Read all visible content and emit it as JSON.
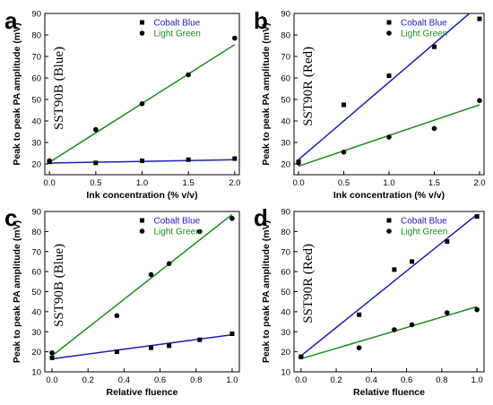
{
  "colors": {
    "blue": "#1c1cb4",
    "green": "#1a8c1a",
    "marker": "#000000",
    "axis": "#000000"
  },
  "chart_data": [
    {
      "panel": "a",
      "type": "scatter",
      "sample_label": "SST90B (Blue)",
      "xlabel": "Ink concentration (% v/v)",
      "ylabel": "Peak to peak PA amplitude (mV)",
      "xlim": [
        -0.05,
        2.05
      ],
      "ylim": [
        15,
        90
      ],
      "xticks": [
        "0.0",
        "0.5",
        "1.0",
        "1.5",
        "2.0"
      ],
      "xtick_values": [
        0,
        0.5,
        1.0,
        1.5,
        2.0
      ],
      "yticks": [
        "20",
        "30",
        "40",
        "50",
        "60",
        "70",
        "80",
        "90"
      ],
      "ytick_values": [
        20,
        30,
        40,
        50,
        60,
        70,
        80,
        90
      ],
      "legend": "top-left",
      "series": [
        {
          "name": "Cobalt Blue",
          "marker": "square",
          "color": "blue",
          "x": [
            0,
            0.5,
            1.0,
            1.5,
            2.0
          ],
          "y": [
            21.0,
            20.5,
            21.5,
            22.0,
            22.5
          ],
          "fit": [
            [
              0,
              20.4
            ],
            [
              2.0,
              22.0
            ]
          ]
        },
        {
          "name": "Light Green",
          "marker": "circle",
          "color": "green",
          "x": [
            0,
            0.5,
            1.0,
            1.5,
            2.0
          ],
          "y": [
            21.5,
            36.0,
            48.0,
            61.5,
            78.5
          ],
          "fit": [
            [
              0,
              20.8
            ],
            [
              2.0,
              75.5
            ]
          ]
        }
      ]
    },
    {
      "panel": "b",
      "type": "scatter",
      "sample_label": "SST90R (Red)",
      "xlabel": "Ink concentration (% v/v)",
      "ylabel": "Peak to peak PA amplitude (mV)",
      "xlim": [
        -0.05,
        2.05
      ],
      "ylim": [
        15,
        90
      ],
      "xticks": [
        "0.0",
        "0.5",
        "1.0",
        "1.5",
        "2.0"
      ],
      "xtick_values": [
        0,
        0.5,
        1.0,
        1.5,
        2.0
      ],
      "yticks": [
        "20",
        "30",
        "40",
        "50",
        "60",
        "70",
        "80",
        "90"
      ],
      "ytick_values": [
        20,
        30,
        40,
        50,
        60,
        70,
        80,
        90
      ],
      "legend": "top-left",
      "series": [
        {
          "name": "Cobalt Blue",
          "marker": "square",
          "color": "blue",
          "x": [
            0,
            0.5,
            1.0,
            1.5,
            2.0
          ],
          "y": [
            21.0,
            47.5,
            61.0,
            74.5,
            87.5
          ],
          "fit": [
            [
              0,
              22.0
            ],
            [
              2.0,
              94.0
            ]
          ]
        },
        {
          "name": "Light Green",
          "marker": "circle",
          "color": "green",
          "x": [
            0,
            0.5,
            1.0,
            1.5,
            2.0
          ],
          "y": [
            20.5,
            25.5,
            32.5,
            36.5,
            49.5
          ],
          "fit": [
            [
              0,
              19.0
            ],
            [
              2.0,
              47.5
            ]
          ]
        }
      ]
    },
    {
      "panel": "c",
      "type": "scatter",
      "sample_label": "SST90B (Blue)",
      "xlabel": "Relative fluence",
      "ylabel": "Peak to peak PA amplitude (mV)",
      "xlim": [
        -0.04,
        1.04
      ],
      "ylim": [
        10,
        90
      ],
      "xticks": [
        "0.0",
        "0.2",
        "0.4",
        "0.6",
        "0.8",
        "1.0"
      ],
      "xtick_values": [
        0,
        0.2,
        0.4,
        0.6,
        0.8,
        1.0
      ],
      "yticks": [
        "10",
        "20",
        "30",
        "40",
        "50",
        "60",
        "70",
        "80",
        "90"
      ],
      "ytick_values": [
        10,
        20,
        30,
        40,
        50,
        60,
        70,
        80,
        90
      ],
      "legend": "top-left",
      "series": [
        {
          "name": "Cobalt Blue",
          "marker": "square",
          "color": "blue",
          "x": [
            0,
            0.36,
            0.55,
            0.65,
            0.82,
            1.0
          ],
          "y": [
            17.0,
            20.0,
            22.0,
            23.0,
            26.0,
            29.0
          ],
          "fit": [
            [
              0,
              16.5
            ],
            [
              1.0,
              28.5
            ]
          ]
        },
        {
          "name": "Light Green",
          "marker": "circle",
          "color": "green",
          "x": [
            0,
            0.36,
            0.55,
            0.65,
            0.82,
            1.0
          ],
          "y": [
            19.5,
            38.0,
            58.5,
            64.0,
            80.0,
            86.5
          ],
          "fit": [
            [
              0,
              18.0
            ],
            [
              1.0,
              88.5
            ]
          ]
        }
      ]
    },
    {
      "panel": "d",
      "type": "scatter",
      "sample_label": "SST90R (Red)",
      "xlabel": "Relative fluence",
      "ylabel": "Peak to peak PA amplitude (mV)",
      "xlim": [
        -0.04,
        1.04
      ],
      "ylim": [
        10,
        90
      ],
      "xticks": [
        "0.0",
        "0.2",
        "0.4",
        "0.6",
        "0.8",
        "1.0"
      ],
      "xtick_values": [
        0,
        0.2,
        0.4,
        0.6,
        0.8,
        1.0
      ],
      "yticks": [
        "10",
        "20",
        "30",
        "40",
        "50",
        "60",
        "70",
        "80",
        "90"
      ],
      "ytick_values": [
        10,
        20,
        30,
        40,
        50,
        60,
        70,
        80,
        90
      ],
      "legend": "top-left",
      "series": [
        {
          "name": "Cobalt Blue",
          "marker": "square",
          "color": "blue",
          "x": [
            0,
            0.33,
            0.53,
            0.63,
            0.83,
            1.0
          ],
          "y": [
            17.5,
            38.5,
            61.0,
            65.0,
            75.0,
            87.5
          ],
          "fit": [
            [
              0,
              18.0
            ],
            [
              1.0,
              88.5
            ]
          ]
        },
        {
          "name": "Light Green",
          "marker": "circle",
          "color": "green",
          "x": [
            0,
            0.33,
            0.53,
            0.63,
            0.83,
            1.0
          ],
          "y": [
            17.5,
            22.0,
            31.0,
            33.5,
            39.5,
            41.0
          ],
          "fit": [
            [
              0,
              16.5
            ],
            [
              1.0,
              42.5
            ]
          ]
        }
      ]
    }
  ]
}
